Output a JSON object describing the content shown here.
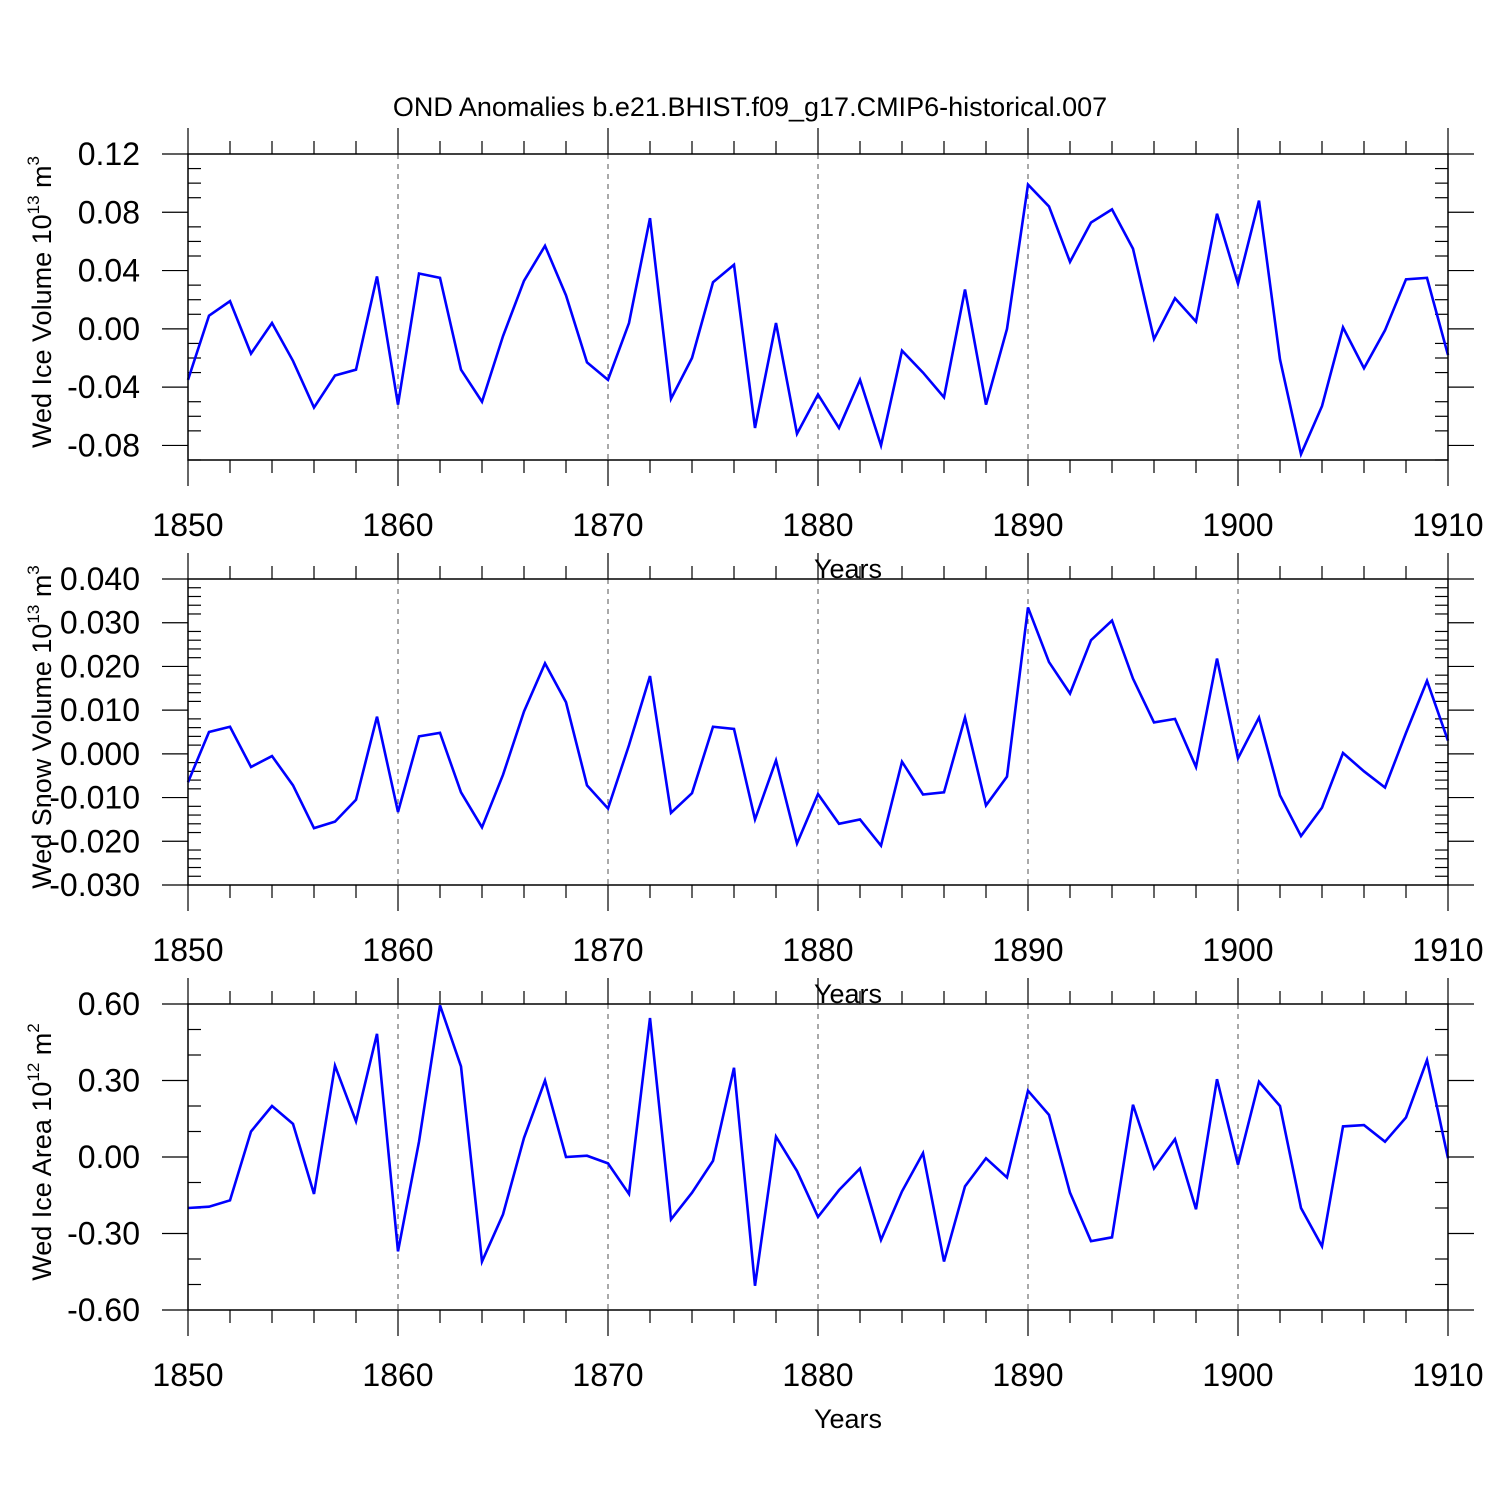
{
  "title": "OND Anomalies b.e21.BHIST.f09_g17.CMIP6-historical.007",
  "colors": {
    "series": "#0000ff",
    "axes": "#000000",
    "grid": "#555555"
  },
  "chart_data": [
    {
      "type": "line",
      "title": "OND Anomalies b.e21.BHIST.f09_g17.CMIP6-historical.007",
      "ylabel": {
        "text": "Wed Ice Volume 10",
        "exponent": "13",
        "unit": " m",
        "unit_exponent": "3"
      },
      "xlabel": "Years",
      "xlim": [
        1850,
        1910
      ],
      "ylim": [
        -0.09,
        0.12
      ],
      "yticks": [
        -0.08,
        -0.04,
        0.0,
        0.04,
        0.08,
        0.12
      ],
      "ytick_labels": [
        "-0.08",
        "-0.04",
        "0.00",
        "0.04",
        "0.08",
        "0.12"
      ],
      "yminor_step": 0.01,
      "xticks": [
        1850,
        1860,
        1870,
        1880,
        1890,
        1900,
        1910
      ],
      "xtick_labels": [
        "1850",
        "1860",
        "1870",
        "1880",
        "1890",
        "1900",
        "1910"
      ],
      "grid_x": [
        1860,
        1870,
        1880,
        1890,
        1900
      ],
      "ref_line": 0.12,
      "x_start": 1850,
      "series": [
        {
          "name": "Wed Ice Volume",
          "values": [
            -0.035,
            0.009,
            0.019,
            -0.017,
            0.004,
            -0.022,
            -0.054,
            -0.032,
            -0.028,
            0.036,
            -0.052,
            0.038,
            0.035,
            -0.028,
            -0.05,
            -0.005,
            0.033,
            0.057,
            0.023,
            -0.023,
            -0.035,
            0.004,
            0.076,
            -0.048,
            -0.02,
            0.032,
            0.044,
            -0.068,
            0.004,
            -0.072,
            -0.045,
            -0.068,
            -0.035,
            -0.08,
            -0.015,
            -0.03,
            -0.047,
            0.027,
            -0.052,
            0.0,
            0.099,
            0.084,
            0.046,
            0.073,
            0.082,
            0.055,
            -0.007,
            0.021,
            0.005,
            0.079,
            0.031,
            0.088,
            -0.021,
            -0.086,
            -0.053,
            0.001,
            -0.027,
            -0.001,
            0.034,
            0.035,
            -0.018
          ]
        }
      ]
    },
    {
      "type": "line",
      "ylabel": {
        "text": "Wed Snow Volume 10",
        "exponent": "13",
        "unit": " m",
        "unit_exponent": "3"
      },
      "xlabel": "Years",
      "xlim": [
        1850,
        1910
      ],
      "ylim": [
        -0.03,
        0.04
      ],
      "yticks": [
        -0.03,
        -0.02,
        -0.01,
        0.0,
        0.01,
        0.02,
        0.03,
        0.04
      ],
      "ytick_labels": [
        "-0.030",
        "-0.020",
        "-0.010",
        "0.000",
        "0.010",
        "0.020",
        "0.030",
        "0.040"
      ],
      "yminor_step": 0.002,
      "xticks": [
        1850,
        1860,
        1870,
        1880,
        1890,
        1900,
        1910
      ],
      "xtick_labels": [
        "1850",
        "1860",
        "1870",
        "1880",
        "1890",
        "1900",
        "1910"
      ],
      "grid_x": [
        1860,
        1870,
        1880,
        1890,
        1900
      ],
      "ref_line": null,
      "x_start": 1850,
      "series": [
        {
          "name": "Wed Snow Volume",
          "values": [
            -0.0065,
            0.005,
            0.0062,
            -0.003,
            -0.0005,
            -0.0072,
            -0.017,
            -0.0155,
            -0.0105,
            0.0085,
            -0.0133,
            0.004,
            0.0048,
            -0.0088,
            -0.0168,
            -0.0048,
            0.0097,
            0.0207,
            0.0118,
            -0.0072,
            -0.0125,
            0.002,
            0.0178,
            -0.0135,
            -0.009,
            0.0062,
            0.0057,
            -0.015,
            -0.0015,
            -0.0205,
            -0.0092,
            -0.016,
            -0.015,
            -0.021,
            -0.0018,
            -0.0093,
            -0.0088,
            0.0083,
            -0.0118,
            -0.0052,
            0.0335,
            0.021,
            0.0138,
            0.026,
            0.0305,
            0.0172,
            0.0072,
            0.008,
            -0.003,
            0.0218,
            -0.001,
            0.0083,
            -0.0095,
            -0.0188,
            -0.0123,
            0.0002,
            -0.004,
            -0.0077,
            0.0048,
            0.0167,
            0.003
          ]
        }
      ]
    },
    {
      "type": "line",
      "ylabel": {
        "text": "Wed Ice Area 10",
        "exponent": "12",
        "unit": " m",
        "unit_exponent": "2"
      },
      "xlabel": "Years",
      "xlim": [
        1850,
        1910
      ],
      "ylim": [
        -0.6,
        0.6
      ],
      "yticks": [
        -0.6,
        -0.3,
        0.0,
        0.3,
        0.6
      ],
      "ytick_labels": [
        "-0.60",
        "-0.30",
        "0.00",
        "0.30",
        "0.60"
      ],
      "yminor_step": 0.1,
      "xticks": [
        1850,
        1860,
        1870,
        1880,
        1890,
        1900,
        1910
      ],
      "xtick_labels": [
        "1850",
        "1860",
        "1870",
        "1880",
        "1890",
        "1900",
        "1910"
      ],
      "grid_x": [
        1860,
        1870,
        1880,
        1890,
        1900
      ],
      "ref_line": 0.6,
      "x_start": 1850,
      "series": [
        {
          "name": "Wed Ice Area",
          "values": [
            -0.2,
            -0.195,
            -0.17,
            0.1,
            0.2,
            0.13,
            -0.145,
            0.358,
            0.14,
            0.483,
            -0.37,
            0.06,
            0.595,
            0.355,
            -0.41,
            -0.225,
            0.075,
            0.3,
            0.0,
            0.005,
            -0.025,
            -0.145,
            0.545,
            -0.245,
            -0.14,
            -0.015,
            0.35,
            -0.505,
            0.08,
            -0.055,
            -0.235,
            -0.13,
            -0.045,
            -0.325,
            -0.135,
            0.015,
            -0.41,
            -0.115,
            -0.005,
            -0.08,
            0.26,
            0.165,
            -0.14,
            -0.33,
            -0.315,
            0.205,
            -0.045,
            0.07,
            -0.205,
            0.305,
            -0.03,
            0.295,
            0.2,
            -0.2,
            -0.35,
            0.12,
            0.125,
            0.06,
            0.155,
            0.38,
            -0.005
          ]
        }
      ]
    }
  ]
}
